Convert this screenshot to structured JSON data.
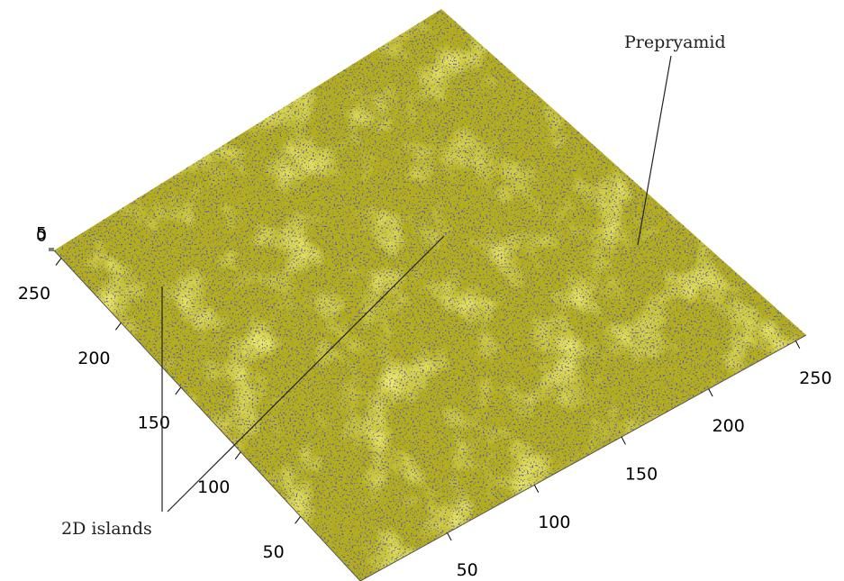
{
  "chart_data": {
    "type": "surface",
    "xlim": [
      0,
      256
    ],
    "xticks": [
      50,
      100,
      150,
      200,
      250
    ],
    "ylim": [
      0,
      256
    ],
    "yticks": [
      50,
      100,
      150,
      200,
      250
    ],
    "zlim": [
      0,
      5
    ],
    "zticks": [
      0,
      5
    ],
    "surface_color": "#b4ae1e",
    "speck_color": "#1a1a6e",
    "annotations": [
      "Prepryamid",
      "2D islands"
    ]
  }
}
